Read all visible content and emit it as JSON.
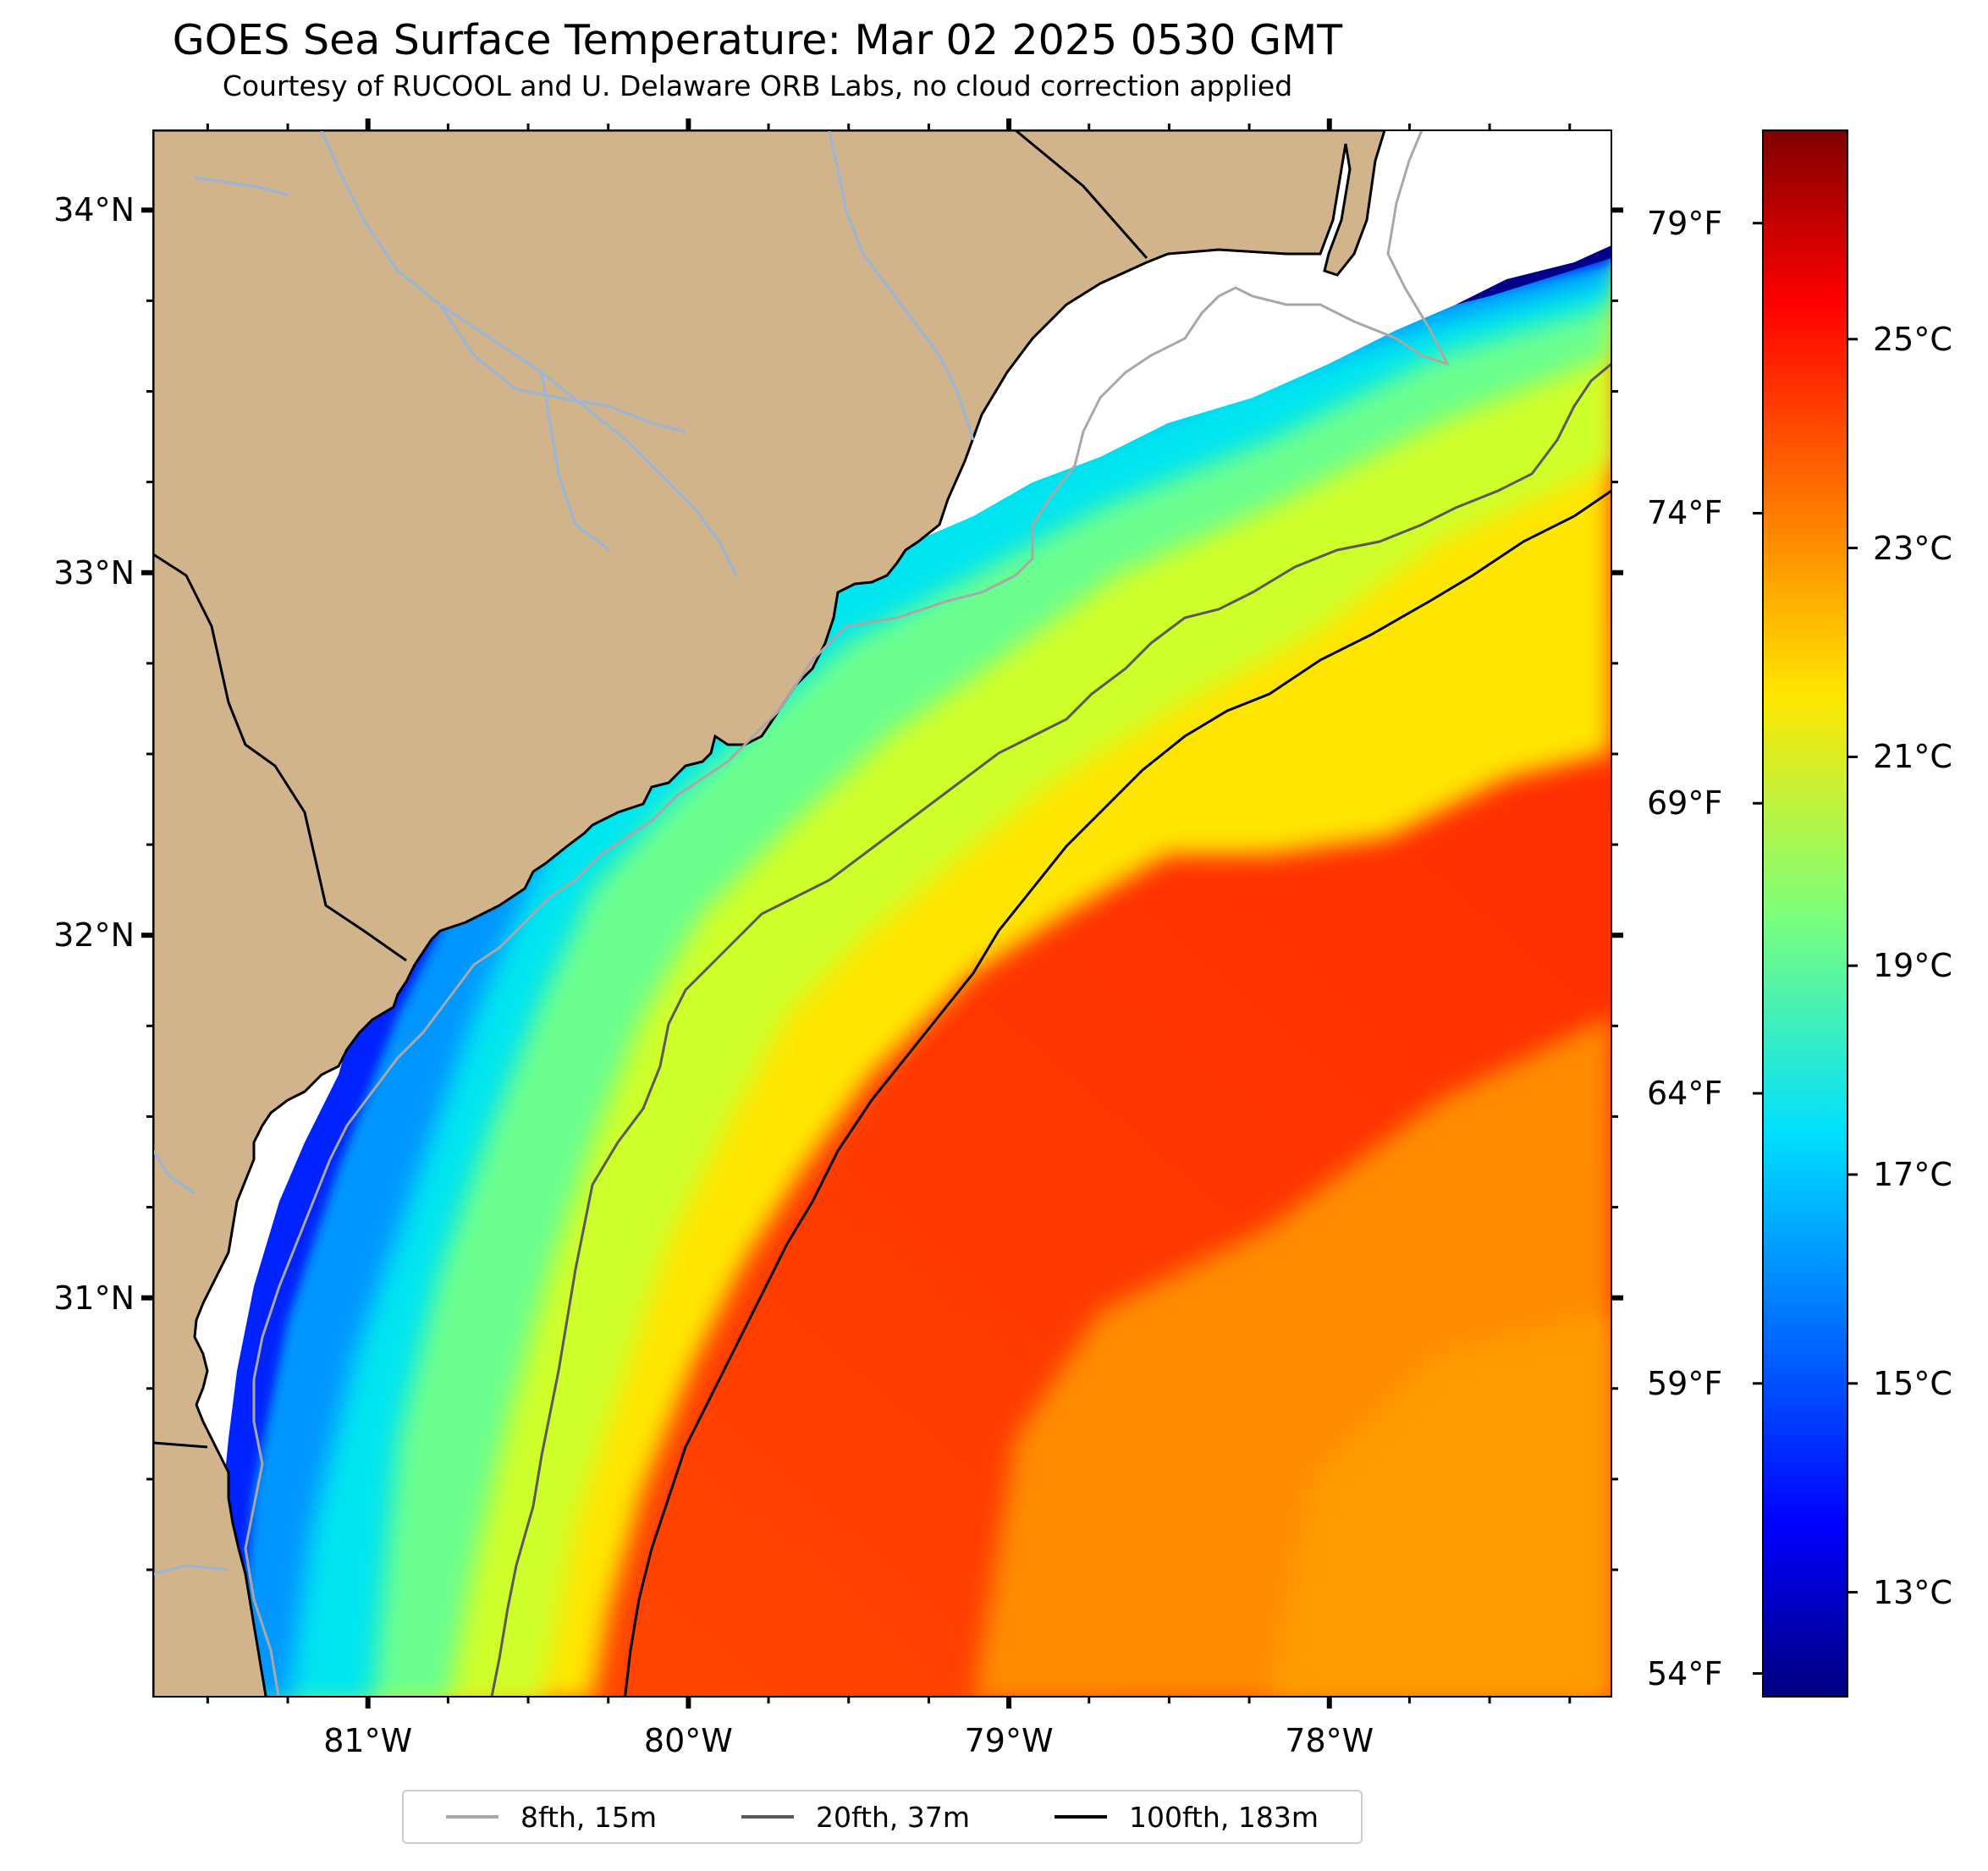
{
  "title": "GOES Sea Surface Temperature: Mar 02 2025 0530 GMT",
  "subtitle": "Courtesy of RUCOOL and U. Delaware ORB Labs, no cloud correction applied",
  "colors": {
    "land": "#d2b48c",
    "coast": "#000000",
    "river": "#99b6d8",
    "no_data": "#ffffff",
    "isobath_8fth": "#a8a8a8",
    "isobath_20fth": "#595959",
    "isobath_100fth": "#000000"
  },
  "map": {
    "lon_labels": [
      "81°W",
      "80°W",
      "79°W",
      "78°W"
    ],
    "lat_labels": [
      "34°N",
      "33°N",
      "32°N",
      "31°N"
    ],
    "fahrenheit_labels": [
      "79°F",
      "74°F",
      "69°F",
      "64°F",
      "59°F",
      "54°F"
    ]
  },
  "colorbar": {
    "celsius_labels": [
      "25°C",
      "23°C",
      "21°C",
      "19°C",
      "17°C",
      "15°C",
      "13°C"
    ],
    "colormap": "jet"
  },
  "legend": {
    "items": [
      {
        "label": "8fth, 15m",
        "color": "#a8a8a8"
      },
      {
        "label": "20fth, 37m",
        "color": "#595959"
      },
      {
        "label": "100fth, 183m",
        "color": "#000000"
      }
    ]
  },
  "chart_data": {
    "type": "heatmap",
    "title": "GOES Sea Surface Temperature: Mar 02 2025 0530 GMT",
    "subtitle": "Courtesy of RUCOOL and U. Delaware ORB Labs, no cloud correction applied",
    "variable": "sea surface temperature",
    "units": "°C",
    "colorbar_range_c": [
      12.0,
      27.0
    ],
    "colorbar_ticks_c": [
      13,
      15,
      17,
      19,
      21,
      23,
      25
    ],
    "secondary_axis_ticks_f": [
      54,
      59,
      64,
      69,
      74,
      79
    ],
    "lon_range": [
      -81.67,
      -77.12
    ],
    "lat_range": [
      29.9,
      34.22
    ],
    "lon_ticks": [
      -81,
      -80,
      -79,
      -78
    ],
    "lat_ticks": [
      31,
      32,
      33,
      34
    ],
    "isobaths": [
      "8fth, 15m",
      "20fth, 37m",
      "100fth, 183m"
    ]
  }
}
